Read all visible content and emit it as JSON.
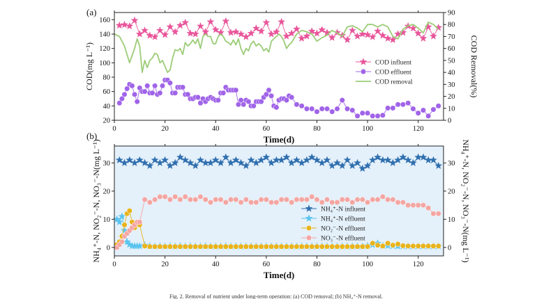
{
  "figure": {
    "caption": "Fig. 2. Removal of nutrient under long-term operation: (a) COD removal; (b) NH₄⁺-N removal."
  },
  "chart_data": [
    {
      "panel_label": "(a)",
      "type": "line",
      "xlabel": "Time(d)",
      "ylabel": "COD(mg L⁻¹)",
      "y2label": "COD Removal(%)",
      "xlim": [
        0,
        130
      ],
      "ylim": [
        20,
        170
      ],
      "y2lim": [
        0,
        90
      ],
      "xticks": [
        0,
        20,
        40,
        60,
        80,
        100,
        120
      ],
      "yticks": [
        20,
        40,
        60,
        80,
        100,
        120,
        140,
        160
      ],
      "y2ticks": [
        0,
        10,
        20,
        30,
        40,
        50,
        60,
        70,
        80,
        90
      ],
      "grid": false,
      "legend_position": "right",
      "series": [
        {
          "name": "COD influent",
          "axis": "left",
          "marker": "star",
          "color": "#e8559a",
          "x": [
            2,
            4,
            6,
            8,
            10,
            12,
            14,
            16,
            18,
            20,
            22,
            24,
            26,
            28,
            30,
            32,
            34,
            36,
            38,
            40,
            42,
            44,
            46,
            48,
            50,
            52,
            54,
            56,
            58,
            60,
            62,
            64,
            66,
            68,
            70,
            72,
            74,
            76,
            78,
            80,
            82,
            84,
            86,
            88,
            90,
            92,
            94,
            96,
            98,
            100,
            102,
            104,
            106,
            108,
            110,
            112,
            114,
            116,
            118,
            120,
            122,
            124,
            126,
            128
          ],
          "values": [
            152,
            153,
            151,
            159,
            140,
            145,
            138,
            136,
            145,
            139,
            150,
            143,
            152,
            156,
            141,
            140,
            151,
            143,
            157,
            146,
            142,
            158,
            142,
            143,
            140,
            136,
            141,
            148,
            144,
            156,
            140,
            143,
            157,
            137,
            141,
            147,
            134,
            137,
            144,
            141,
            146,
            142,
            135,
            142,
            138,
            132,
            145,
            137,
            140,
            139,
            136,
            144,
            138,
            134,
            132,
            140,
            142,
            151,
            148,
            141,
            134,
            150,
            137,
            149
          ]
        },
        {
          "name": "COD effluent",
          "axis": "left",
          "marker": "circle",
          "color": "#a064e8",
          "x": [
            2,
            3,
            4,
            5,
            6,
            7,
            8,
            9,
            10,
            11,
            12,
            13,
            14,
            15,
            16,
            17,
            18,
            19,
            20,
            21,
            22,
            23,
            24,
            25,
            26,
            27,
            28,
            29,
            30,
            31,
            32,
            33,
            34,
            35,
            36,
            37,
            38,
            39,
            40,
            41,
            42,
            43,
            44,
            45,
            46,
            47,
            48,
            49,
            50,
            51,
            52,
            53,
            54,
            55,
            56,
            57,
            58,
            59,
            60,
            61,
            62,
            63,
            64,
            65,
            66,
            67,
            68,
            69,
            70,
            72,
            74,
            76,
            78,
            80,
            82,
            84,
            86,
            88,
            90,
            92,
            94,
            96,
            98,
            100,
            102,
            104,
            106,
            108,
            110,
            112,
            114,
            116,
            118,
            120,
            122,
            124,
            126,
            128
          ],
          "values": [
            44,
            50,
            56,
            64,
            70,
            68,
            56,
            46,
            65,
            60,
            60,
            68,
            58,
            58,
            68,
            56,
            58,
            68,
            76,
            76,
            72,
            58,
            58,
            66,
            66,
            66,
            56,
            56,
            50,
            50,
            52,
            52,
            44,
            50,
            46,
            50,
            52,
            50,
            48,
            48,
            58,
            58,
            66,
            62,
            62,
            62,
            62,
            42,
            48,
            42,
            48,
            46,
            40,
            40,
            46,
            46,
            46,
            52,
            56,
            62,
            54,
            40,
            38,
            48,
            50,
            50,
            48,
            54,
            52,
            42,
            40,
            36,
            36,
            32,
            36,
            36,
            32,
            36,
            48,
            36,
            34,
            26,
            30,
            30,
            26,
            26,
            27,
            37,
            37,
            42,
            42,
            44,
            36,
            30,
            34,
            26,
            35,
            40
          ]
        },
        {
          "name": "COD removal",
          "axis": "right",
          "marker": "none",
          "color": "#9ccc77",
          "x": [
            0,
            2,
            4,
            6,
            8,
            9,
            10,
            11,
            12,
            13,
            14,
            15,
            16,
            17,
            18,
            19,
            20,
            21,
            22,
            23,
            24,
            25,
            26,
            27,
            28,
            29,
            30,
            31,
            32,
            33,
            34,
            35,
            36,
            37,
            38,
            39,
            40,
            41,
            42,
            43,
            44,
            45,
            46,
            47,
            48,
            49,
            50,
            51,
            52,
            53,
            54,
            55,
            56,
            57,
            58,
            59,
            60,
            61,
            62,
            63,
            64,
            65,
            66,
            67,
            68,
            69,
            70,
            72,
            74,
            76,
            78,
            80,
            82,
            84,
            86,
            88,
            90,
            92,
            94,
            96,
            98,
            100,
            102,
            104,
            106,
            108,
            110,
            112,
            114,
            116,
            118,
            120,
            122,
            124,
            126,
            128
          ],
          "values": [
            72,
            70,
            62,
            48,
            60,
            68,
            62,
            40,
            50,
            44,
            50,
            52,
            56,
            55,
            48,
            50,
            45,
            40,
            42,
            52,
            59,
            58,
            60,
            55,
            65,
            62,
            64,
            67,
            64,
            68,
            60,
            70,
            72,
            70,
            70,
            64,
            64,
            70,
            72,
            70,
            66,
            65,
            63,
            67,
            63,
            68,
            60,
            55,
            60,
            58,
            64,
            66,
            62,
            64,
            62,
            58,
            60,
            57,
            66,
            68,
            70,
            72,
            70,
            66,
            60,
            63,
            65,
            72,
            75,
            74,
            72,
            66,
            69,
            71,
            75,
            73,
            70,
            78,
            79,
            77,
            74,
            80,
            80,
            78,
            80,
            78,
            70,
            68,
            76,
            79,
            80,
            77,
            73,
            82,
            80,
            76
          ]
        }
      ]
    },
    {
      "panel_label": "(b)",
      "type": "line",
      "xlabel": "Time(d)",
      "ylabel": "NH₄⁺-N, NO₂⁻-N, NO₃⁻-N(mg L⁻¹)",
      "y2label": "NH₄⁺-N, NO₂⁻-N, NO₃⁻-N(mg L⁻¹)",
      "xlim": [
        0,
        130
      ],
      "ylim": [
        -3,
        36
      ],
      "xticks": [
        0,
        20,
        40,
        60,
        80,
        100,
        120
      ],
      "yticks": [
        0,
        10,
        20,
        30
      ],
      "background": "#e4f0fa",
      "grid": false,
      "legend_position": "bottom-right",
      "series": [
        {
          "name": "NH₄⁺-N influent",
          "marker": "star",
          "color": "#2f6fae",
          "x": [
            2,
            4,
            6,
            8,
            10,
            12,
            14,
            16,
            18,
            20,
            22,
            24,
            26,
            28,
            30,
            32,
            34,
            36,
            38,
            40,
            42,
            44,
            46,
            48,
            50,
            52,
            54,
            56,
            58,
            60,
            62,
            64,
            66,
            68,
            70,
            72,
            74,
            76,
            78,
            80,
            82,
            84,
            86,
            88,
            90,
            92,
            94,
            96,
            98,
            100,
            102,
            104,
            106,
            108,
            110,
            112,
            114,
            116,
            118,
            120,
            122,
            124,
            126,
            128
          ],
          "values": [
            31,
            30,
            31,
            30,
            31,
            30,
            29,
            31,
            30,
            31,
            29,
            30,
            32,
            31,
            30,
            29,
            31,
            30,
            30,
            31,
            30,
            32,
            30,
            31,
            30,
            29,
            31,
            30,
            31,
            32,
            30,
            31,
            31,
            32,
            30,
            31,
            30,
            31,
            32,
            31,
            30,
            31,
            29,
            30,
            29,
            31,
            29,
            30,
            28,
            29,
            31,
            32,
            31,
            31,
            30,
            31,
            32,
            31,
            30,
            32,
            32,
            31,
            31,
            29
          ]
        },
        {
          "name": "NH₄⁺-N effluent",
          "marker": "star",
          "color": "#5bc4ef",
          "x": [
            1,
            2,
            3,
            4,
            5,
            6,
            7,
            8,
            9,
            10,
            12,
            14,
            16,
            18,
            20,
            22,
            24,
            26,
            28,
            30,
            32,
            34,
            36,
            38,
            40,
            42,
            44,
            46,
            48,
            50,
            52,
            54,
            56,
            58,
            60,
            62,
            64,
            66,
            68,
            70,
            72,
            74,
            76,
            78,
            80,
            82,
            84,
            86,
            88,
            90,
            92,
            94,
            96,
            98,
            100,
            102,
            104,
            106,
            108,
            110,
            112,
            114,
            116,
            118,
            120,
            122,
            124,
            126,
            128
          ],
          "values": [
            10,
            9,
            11,
            6,
            2,
            1,
            0.5,
            0.5,
            0.5,
            0.5,
            0.8,
            0.5,
            0.4,
            0.5,
            0.4,
            0.5,
            0.4,
            0.5,
            0.4,
            0.5,
            0.4,
            0.4,
            0.5,
            0.4,
            0.4,
            0.4,
            0.5,
            0.4,
            0.4,
            0.4,
            0.4,
            0.4,
            0.4,
            0.4,
            0.4,
            0.4,
            0.4,
            0.4,
            0.4,
            0.4,
            0.4,
            0.4,
            0.4,
            0.4,
            0.4,
            0.4,
            0.4,
            0.4,
            0.4,
            0.4,
            0.4,
            0.4,
            0.4,
            0.4,
            0.6,
            0.9,
            1.5,
            0.6,
            0.6,
            0.5,
            0.4,
            0.4,
            0.4,
            0.4,
            0.4,
            0.4,
            0.4,
            0.4,
            0.4
          ]
        },
        {
          "name": "NO₂⁻-N effluent",
          "marker": "circle",
          "color": "#e8b31c",
          "x": [
            1,
            2,
            3,
            4,
            5,
            6,
            7,
            8,
            9,
            10,
            12,
            14,
            16,
            18,
            20,
            22,
            24,
            26,
            28,
            30,
            32,
            34,
            36,
            38,
            40,
            42,
            44,
            46,
            48,
            50,
            52,
            54,
            56,
            58,
            60,
            62,
            64,
            66,
            68,
            70,
            72,
            74,
            76,
            78,
            80,
            82,
            84,
            86,
            88,
            90,
            92,
            94,
            96,
            98,
            100,
            102,
            104,
            106,
            108,
            110,
            112,
            114,
            116,
            118,
            120,
            122,
            124,
            126,
            128
          ],
          "values": [
            1,
            2,
            4,
            8,
            12,
            13,
            9,
            7,
            9,
            8,
            0.5,
            0.3,
            0.3,
            0.3,
            0.3,
            0.3,
            0.3,
            0.3,
            0.3,
            0.3,
            0.3,
            0.3,
            0.3,
            0.3,
            0.3,
            0.3,
            0.3,
            0.3,
            0.3,
            0.3,
            0.3,
            0.3,
            0.3,
            0.3,
            0.3,
            0.3,
            0.3,
            0.3,
            0.3,
            0.3,
            0.3,
            0.3,
            0.3,
            0.3,
            0.3,
            0.3,
            0.3,
            0.3,
            0.3,
            0.3,
            0.3,
            0.3,
            0.3,
            0.3,
            0.3,
            1.5,
            0.8,
            0.5,
            1.5,
            0.8,
            1.2,
            0.6,
            0.5,
            0.5,
            0.5,
            0.5,
            0.5,
            0.5,
            0.5
          ]
        },
        {
          "name": "NO₃⁻-N effluent",
          "marker": "circle",
          "color": "#f4a6a2",
          "x": [
            1,
            2,
            3,
            4,
            5,
            6,
            7,
            8,
            9,
            10,
            12,
            14,
            16,
            18,
            20,
            22,
            24,
            26,
            28,
            30,
            32,
            34,
            36,
            38,
            40,
            42,
            44,
            46,
            48,
            50,
            52,
            54,
            56,
            58,
            60,
            62,
            64,
            66,
            68,
            70,
            72,
            74,
            76,
            78,
            80,
            82,
            84,
            86,
            88,
            90,
            92,
            94,
            96,
            98,
            100,
            102,
            104,
            106,
            108,
            110,
            112,
            114,
            116,
            118,
            120,
            122,
            124,
            126,
            128
          ],
          "values": [
            0,
            1,
            2,
            4,
            5,
            6,
            7,
            8,
            9,
            9,
            17,
            16,
            17,
            18,
            18,
            17,
            18,
            17,
            18,
            17,
            17,
            18,
            17,
            16,
            17,
            17,
            16,
            17,
            17,
            16,
            17,
            16,
            16,
            17,
            17,
            16,
            16,
            17,
            17,
            16,
            17,
            17,
            17,
            18,
            17,
            16,
            17,
            16,
            16,
            17,
            17,
            16,
            17,
            17,
            16,
            17,
            17,
            18,
            17,
            17,
            16,
            16,
            15,
            15,
            15,
            15,
            14,
            12,
            12
          ]
        }
      ]
    }
  ]
}
